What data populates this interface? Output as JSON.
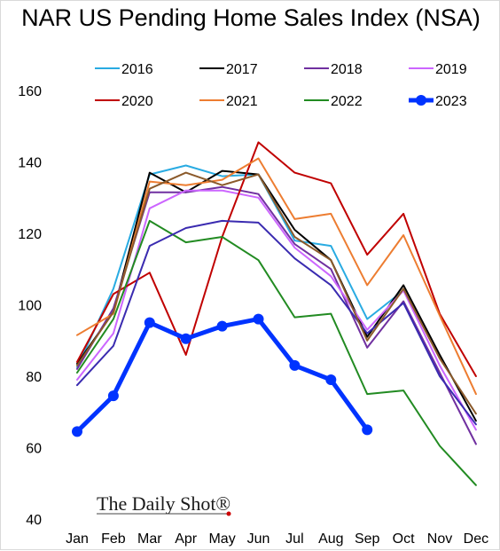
{
  "title": "NAR US Pending Home Sales Index (NSA)",
  "watermark": "The Daily Shot®",
  "chart_data": {
    "type": "line",
    "title": "NAR US Pending Home Sales Index (NSA)",
    "xlabel": "",
    "ylabel": "",
    "categories": [
      "Jan",
      "Feb",
      "Mar",
      "Apr",
      "May",
      "Jun",
      "Jul",
      "Aug",
      "Sep",
      "Oct",
      "Nov",
      "Dec"
    ],
    "ylim": [
      40,
      165
    ],
    "yticks": [
      40,
      60,
      80,
      100,
      120,
      140,
      160
    ],
    "grid": false,
    "legend_position": "top",
    "series": [
      {
        "name": "2016",
        "color": "#29abe2",
        "width": 2,
        "values": [
          82.5,
          104.5,
          136.5,
          139,
          136,
          136.5,
          118,
          116.5,
          96,
          104,
          null,
          null
        ]
      },
      {
        "name": "2017",
        "color": "#000000",
        "width": 2,
        "values": [
          83.5,
          98,
          137,
          131.5,
          137.5,
          136.5,
          121,
          112.5,
          91,
          105.5,
          86,
          67.5
        ]
      },
      {
        "name": "2018",
        "color": "#7030a0",
        "width": 2,
        "values": [
          82,
          99,
          131.5,
          131.5,
          133,
          131,
          117,
          110,
          88,
          101,
          81,
          61
        ]
      },
      {
        "name": "2019",
        "color": "#cc66ff",
        "width": 2,
        "values": [
          79,
          92,
          127,
          132,
          132,
          130,
          116,
          108,
          93,
          104,
          83,
          65
        ]
      },
      {
        "name": "2020",
        "color": "#c00000",
        "width": 2,
        "values": [
          84,
          103,
          109,
          86,
          119,
          145.5,
          137,
          134,
          114,
          125.5,
          97.5,
          80
        ]
      },
      {
        "name": "2021",
        "color": "#ed7d31",
        "width": 2,
        "values": [
          91.5,
          97.5,
          134.5,
          133.5,
          135,
          141,
          124,
          125.5,
          105.5,
          119.5,
          97,
          75
        ]
      },
      {
        "name": "2022",
        "color": "#228b22",
        "width": 2,
        "values": [
          81,
          96,
          123.5,
          117.5,
          119,
          112.5,
          96.5,
          97.5,
          75,
          76,
          60.5,
          49.5
        ]
      },
      {
        "name": "2023",
        "color": "#0033ff",
        "width": 5,
        "markers": true,
        "values": [
          64.5,
          74.5,
          95,
          90.5,
          94,
          96,
          83,
          79,
          65,
          null,
          null,
          null
        ]
      },
      {
        "name": "",
        "color": "#3a2bb0",
        "width": 2,
        "values": [
          77.5,
          88.5,
          116.5,
          121.5,
          123.5,
          123,
          113,
          105.5,
          92,
          100.5,
          80,
          66.5
        ]
      },
      {
        "name": "",
        "color": "#8b5a2b",
        "width": 2,
        "values": [
          83,
          98,
          132.5,
          137,
          133.5,
          136.5,
          119,
          112.5,
          90,
          104.5,
          85,
          69.5
        ]
      }
    ]
  }
}
